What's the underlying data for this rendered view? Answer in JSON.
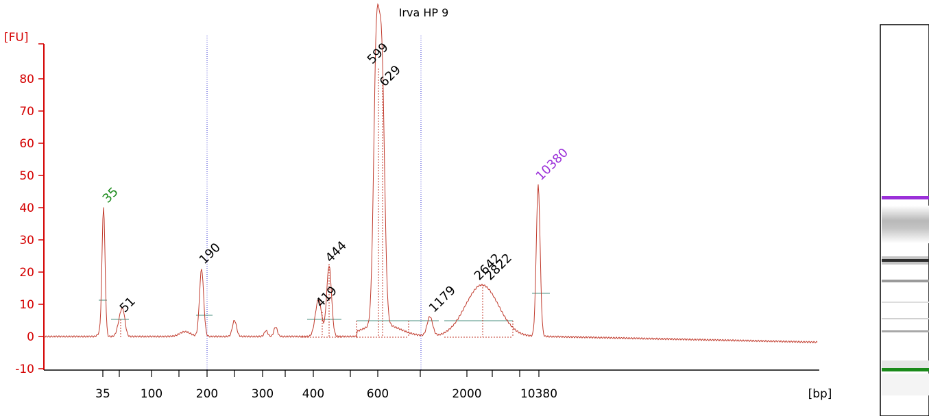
{
  "chart_data": {
    "type": "line",
    "title": "Irva HP 9",
    "ylabel": "[FU]",
    "xlabel": "[bp]",
    "ylim": [
      -10,
      88
    ],
    "yticks": [
      -10,
      0,
      10,
      20,
      30,
      40,
      50,
      60,
      70,
      80
    ],
    "xtick_labels": [
      "35",
      "100",
      "200",
      "300",
      "400",
      "600",
      "2000",
      "10380"
    ],
    "peaks": [
      {
        "label": "35",
        "height": 40,
        "color": "#1a8a1a"
      },
      {
        "label": "51",
        "height": 6,
        "color": "#000000"
      },
      {
        "label": "190",
        "height": 21,
        "color": "#000000"
      },
      {
        "label": "419",
        "height": 8,
        "color": "#000000"
      },
      {
        "label": "444",
        "height": 22,
        "color": "#000000"
      },
      {
        "label": "599",
        "height": 84,
        "color": "#000000"
      },
      {
        "label": "629",
        "height": 77,
        "color": "#000000"
      },
      {
        "label": "1179",
        "height": 6,
        "color": "#000000"
      },
      {
        "label": "2642",
        "height": 16,
        "color": "#000000"
      },
      {
        "label": "2822",
        "height": 16,
        "color": "#000000"
      },
      {
        "label": "10380",
        "height": 47,
        "color": "#9b30d9"
      }
    ],
    "gel_bands": [
      {
        "kind": "upper-marker",
        "color": "#9b30d9"
      },
      {
        "kind": "lower-marker",
        "color": "#1a8a1a"
      }
    ]
  }
}
